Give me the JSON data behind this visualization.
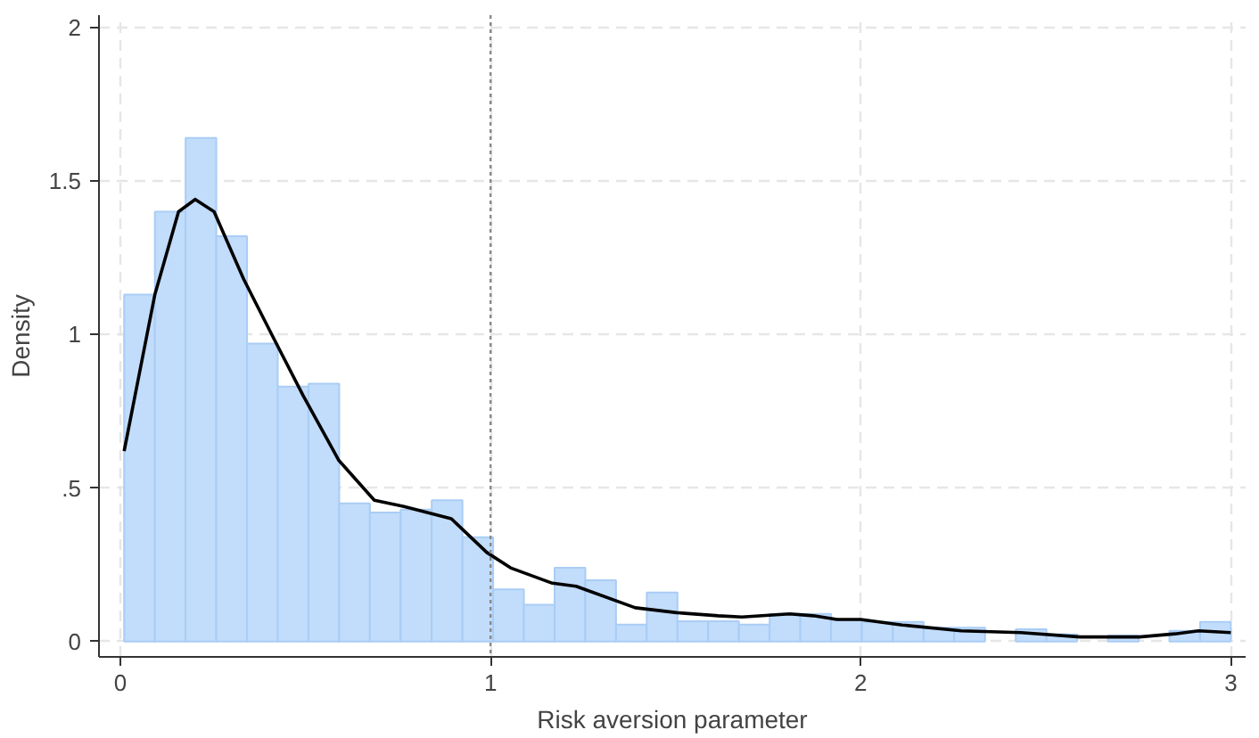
{
  "chart_data": {
    "type": "histogram",
    "xlabel": "Risk aversion parameter",
    "ylabel": "Density",
    "bins": [
      0.01,
      0.093,
      0.176,
      0.259,
      0.342,
      0.425,
      0.508,
      0.591,
      0.674,
      0.757,
      0.841,
      0.924,
      1.007,
      1.09,
      1.173,
      1.256,
      1.339,
      1.422,
      1.505,
      1.588,
      1.671,
      1.754,
      1.837,
      1.92,
      2.003,
      2.087,
      2.17,
      2.253,
      2.336,
      2.419,
      2.502,
      2.585,
      2.668,
      2.751,
      2.834,
      2.917,
      3.0
    ],
    "values": [
      1.13,
      1.4,
      1.64,
      1.32,
      0.97,
      0.83,
      0.84,
      0.45,
      0.42,
      0.43,
      0.46,
      0.34,
      0.17,
      0.12,
      0.24,
      0.2,
      0.055,
      0.16,
      0.066,
      0.066,
      0.055,
      0.09,
      0.09,
      0.07,
      0.064,
      0.064,
      0.045,
      0.045,
      0,
      0.04,
      0.023,
      0,
      0.02,
      0,
      0.035,
      0.064
    ],
    "color": "#c2dcfb",
    "series": [
      {
        "type": "line",
        "color": "#000000",
        "x": [
          0.01,
          0.093,
          0.157,
          0.202,
          0.253,
          0.333,
          0.413,
          0.494,
          0.59,
          0.686,
          0.766,
          0.894,
          0.99,
          1.054,
          1.167,
          1.231,
          1.391,
          1.503,
          1.615,
          1.679,
          1.808,
          1.872,
          1.936,
          2.0,
          2.112,
          2.272,
          2.433,
          2.593,
          2.753,
          2.849,
          2.913,
          3.0
        ],
        "values": [
          0.62,
          1.13,
          1.4,
          1.44,
          1.4,
          1.18,
          0.99,
          0.8,
          0.59,
          0.46,
          0.44,
          0.4,
          0.29,
          0.24,
          0.19,
          0.18,
          0.11,
          0.094,
          0.084,
          0.08,
          0.09,
          0.084,
          0.072,
          0.072,
          0.054,
          0.035,
          0.029,
          0.015,
          0.015,
          0.025,
          0.035,
          0.029
        ]
      }
    ],
    "ref_lines": [
      {
        "axis": "x",
        "value": 1,
        "color": "#888888",
        "line_style": "dotted"
      }
    ],
    "xlim": [
      -0.058,
      3.04
    ],
    "ylim": [
      -0.05,
      2.04
    ],
    "xticks": [
      0,
      1,
      2,
      3
    ],
    "yticks": [
      0,
      {
        "value": 0.5,
        "label": ".5"
      },
      1,
      1.5,
      2
    ],
    "grid": true
  }
}
